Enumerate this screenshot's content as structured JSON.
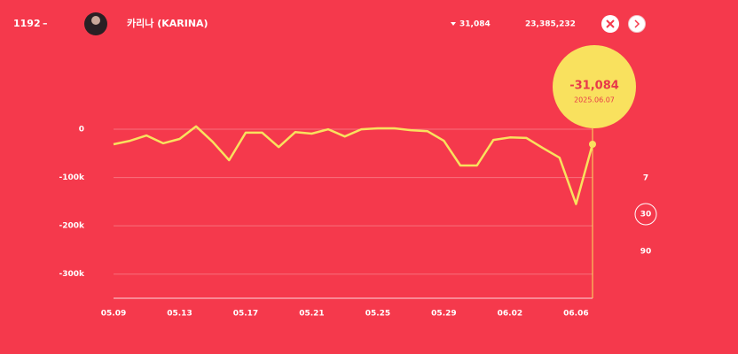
{
  "header": {
    "rank": "1192",
    "rank_change": "–",
    "name": "카리나 (KARINA)",
    "daily_change": "31,084",
    "total": "23,385,232"
  },
  "chart_data": {
    "type": "line",
    "categories": [
      "05.09",
      null,
      null,
      null,
      "05.13",
      null,
      null,
      null,
      "05.17",
      null,
      null,
      null,
      "05.21",
      null,
      null,
      null,
      "05.25",
      null,
      null,
      null,
      "05.29",
      null,
      null,
      null,
      "06.02",
      null,
      null,
      null,
      "06.06",
      null
    ],
    "values": [
      -31000,
      -24000,
      -13000,
      -29000,
      -20000,
      6000,
      -26000,
      -64000,
      -7000,
      -7000,
      -37000,
      -6000,
      -9000,
      0,
      -15000,
      0,
      2000,
      2000,
      -2000,
      -4000,
      -24000,
      -75000,
      -75000,
      -22000,
      -17000,
      -18000,
      -39000,
      -59000,
      -155000,
      -31084
    ],
    "color": "#f9e15e",
    "ylim": [
      -350000,
      100000
    ],
    "yticks": [
      0,
      {
        "value": -100000,
        "label": "-100k"
      },
      {
        "value": -200000,
        "label": "-200k"
      },
      {
        "value": -300000,
        "label": "-300k"
      }
    ],
    "grid": true,
    "annotation": {
      "value_label": "-31,084",
      "date": "2025.06.07"
    }
  },
  "range_options": [
    "7",
    "30",
    "90"
  ],
  "selected_range": "30"
}
